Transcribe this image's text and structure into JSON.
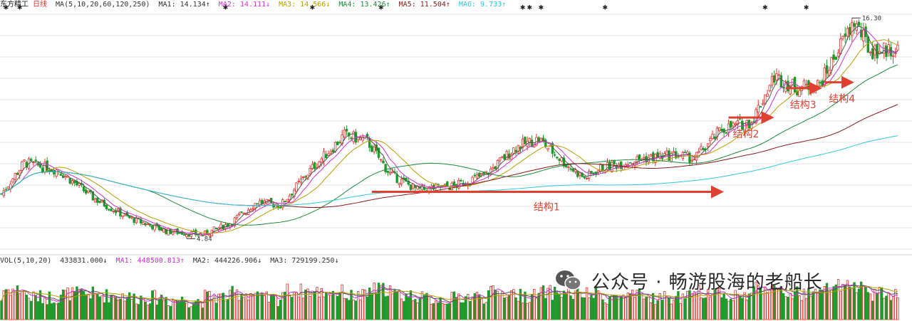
{
  "header": {
    "stock_name": "东方精工",
    "period": "日线",
    "ma_params": "MA(5,10,20,60,120,250)",
    "ma1": "MA1: 14.134↑",
    "ma2": "MA2: 14.111↓",
    "ma3": "MA3: 14.566↓",
    "ma4": "MA4: 13.426↑",
    "ma5": "MA5: 11.504↑",
    "ma6": "MA6: 9.733↑"
  },
  "volume_header": {
    "params": "VOL(5,10,20)",
    "vol": "433831.000↓",
    "ma1": "MA1: 448500.813↑",
    "ma2": "MA2: 444226.906↓",
    "ma3": "MA3: 729199.250↓"
  },
  "watermark": "公众号 · 畅游股海的老船长",
  "colors": {
    "up": "#e8302c",
    "down": "#1f9a2c",
    "ma1": "#555555",
    "ma2": "#d030d0",
    "ma3": "#b8a000",
    "ma4": "#1e8a3c",
    "ma5": "#8a1a1a",
    "ma6": "#30c8e0",
    "annotation": "#e04030"
  },
  "chart_data": {
    "type": "candlestick",
    "price_annotations": {
      "high_label": "16.30",
      "low_label": "4.84"
    },
    "structure_labels": [
      "结构1",
      "结构2",
      "结构3",
      "结构4"
    ],
    "price_trend_anchors": [
      {
        "x": 0,
        "close": 7.2
      },
      {
        "x": 10,
        "close": 8.8
      },
      {
        "x": 25,
        "close": 8.4
      },
      {
        "x": 40,
        "close": 7.0
      },
      {
        "x": 55,
        "close": 6.0
      },
      {
        "x": 72,
        "close": 5.3
      },
      {
        "x": 88,
        "close": 5.1
      },
      {
        "x": 100,
        "close": 5.7
      },
      {
        "x": 112,
        "close": 6.8
      },
      {
        "x": 122,
        "close": 6.6
      },
      {
        "x": 135,
        "close": 8.4
      },
      {
        "x": 150,
        "close": 10.2
      },
      {
        "x": 160,
        "close": 9.9
      },
      {
        "x": 170,
        "close": 8.2
      },
      {
        "x": 182,
        "close": 7.4
      },
      {
        "x": 198,
        "close": 7.6
      },
      {
        "x": 212,
        "close": 8.2
      },
      {
        "x": 225,
        "close": 9.6
      },
      {
        "x": 235,
        "close": 10.0
      },
      {
        "x": 248,
        "close": 8.6
      },
      {
        "x": 255,
        "close": 8.0
      },
      {
        "x": 262,
        "close": 8.5
      },
      {
        "x": 280,
        "close": 9.0
      },
      {
        "x": 295,
        "close": 9.2
      },
      {
        "x": 303,
        "close": 9.0
      },
      {
        "x": 315,
        "close": 10.5
      },
      {
        "x": 328,
        "close": 10.9
      },
      {
        "x": 338,
        "close": 13.2
      },
      {
        "x": 348,
        "close": 12.6
      },
      {
        "x": 358,
        "close": 12.8
      },
      {
        "x": 366,
        "close": 14.6
      },
      {
        "x": 373,
        "close": 16.0
      },
      {
        "x": 380,
        "close": 14.5
      },
      {
        "x": 392,
        "close": 14.6
      }
    ],
    "structure_arrows": [
      {
        "label": "结构1",
        "x_start": 162,
        "x_end": 315,
        "price": 7.3
      },
      {
        "label": "结构2",
        "x_start": 318,
        "x_end": 337,
        "price": 11.1
      },
      {
        "label": "结构3",
        "x_start": 343,
        "x_end": 358,
        "price": 12.6
      },
      {
        "label": "结构4",
        "x_start": 360,
        "x_end": 372,
        "price": 12.9
      }
    ],
    "star_marks_x": [
      2,
      8,
      98,
      136,
      166,
      228,
      231,
      236,
      264,
      334,
      352
    ],
    "x_range": [
      0,
      392
    ],
    "price_range": [
      4.3,
      16.6
    ],
    "volume_range": [
      0,
      1000000
    ]
  }
}
